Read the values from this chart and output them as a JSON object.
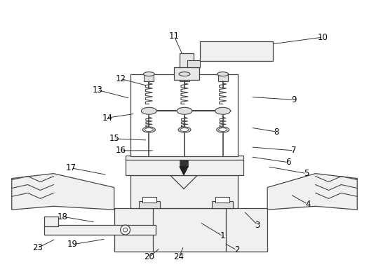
{
  "background_color": "#ffffff",
  "line_color": "#444444",
  "label_color": "#000000",
  "figsize": [
    5.26,
    3.91
  ],
  "dpi": 100,
  "labels_data": [
    [
      "1",
      318,
      338,
      285,
      318
    ],
    [
      "2",
      338,
      358,
      320,
      348
    ],
    [
      "3",
      368,
      322,
      348,
      302
    ],
    [
      "4",
      440,
      292,
      415,
      278
    ],
    [
      "5",
      438,
      248,
      382,
      238
    ],
    [
      "6",
      412,
      232,
      358,
      224
    ],
    [
      "7",
      420,
      215,
      358,
      210
    ],
    [
      "8",
      395,
      188,
      358,
      182
    ],
    [
      "9",
      420,
      142,
      358,
      138
    ],
    [
      "10",
      462,
      52,
      388,
      62
    ],
    [
      "11",
      248,
      50,
      268,
      95
    ],
    [
      "12",
      172,
      112,
      210,
      122
    ],
    [
      "13",
      138,
      128,
      185,
      140
    ],
    [
      "14",
      152,
      168,
      192,
      162
    ],
    [
      "15",
      162,
      198,
      210,
      200
    ],
    [
      "16",
      172,
      215,
      220,
      215
    ],
    [
      "17",
      100,
      240,
      152,
      250
    ],
    [
      "18",
      88,
      310,
      135,
      318
    ],
    [
      "19",
      102,
      350,
      150,
      342
    ],
    [
      "20",
      212,
      368,
      228,
      355
    ],
    [
      "23",
      52,
      355,
      78,
      342
    ],
    [
      "24",
      255,
      368,
      262,
      352
    ]
  ]
}
